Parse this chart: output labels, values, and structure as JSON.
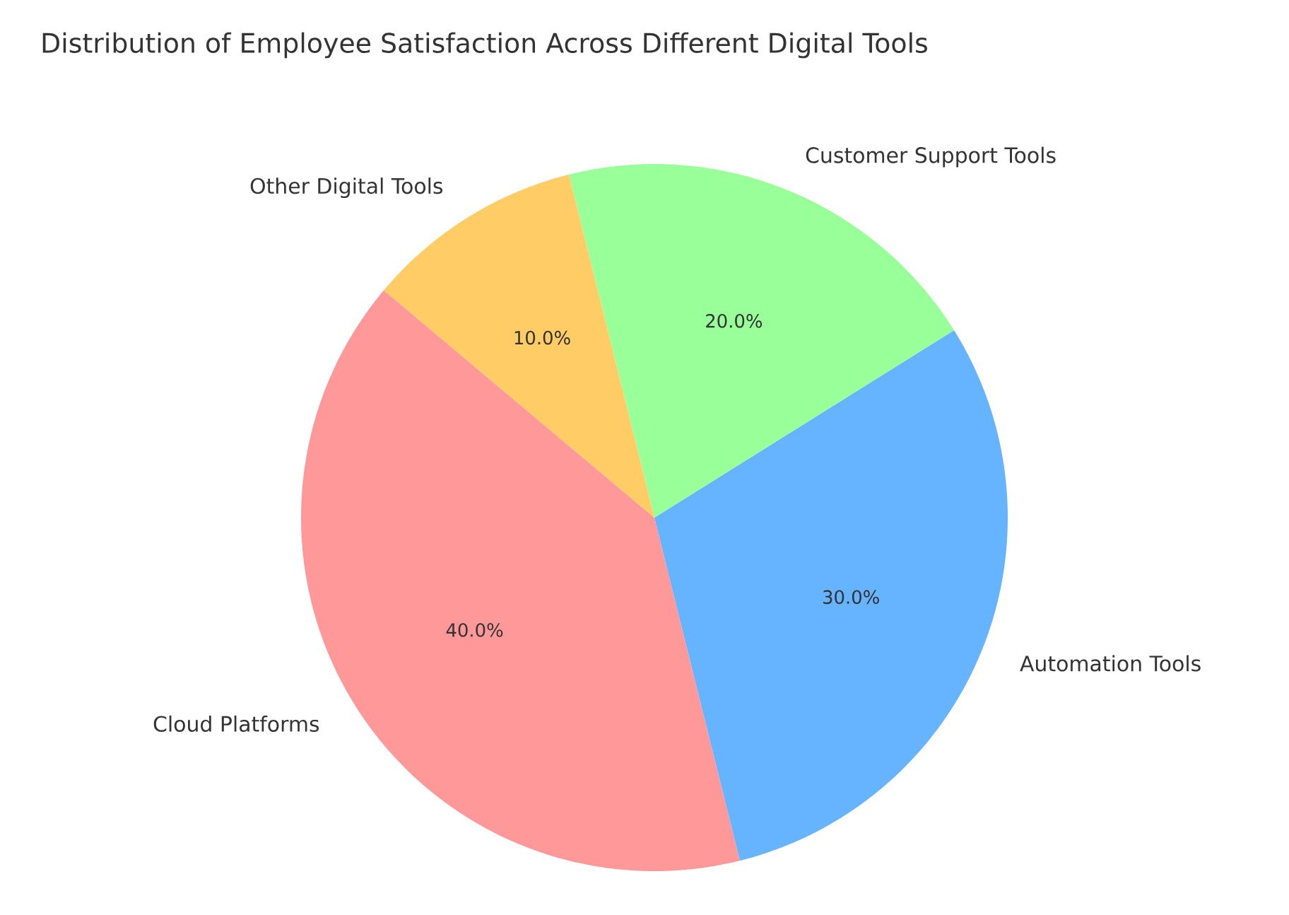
{
  "chart_data": {
    "type": "pie",
    "title": "Distribution of Employee Satisfaction Across Different Digital Tools",
    "categories": [
      "Cloud Platforms",
      "Automation Tools",
      "Customer Support Tools",
      "Other Digital Tools"
    ],
    "values": [
      40,
      30,
      20,
      10
    ],
    "colors": [
      "#ff9999",
      "#66b3ff",
      "#99ff99",
      "#ffcc66"
    ],
    "value_labels": [
      "40.0%",
      "30.0%",
      "20.0%",
      "10.0%"
    ]
  }
}
